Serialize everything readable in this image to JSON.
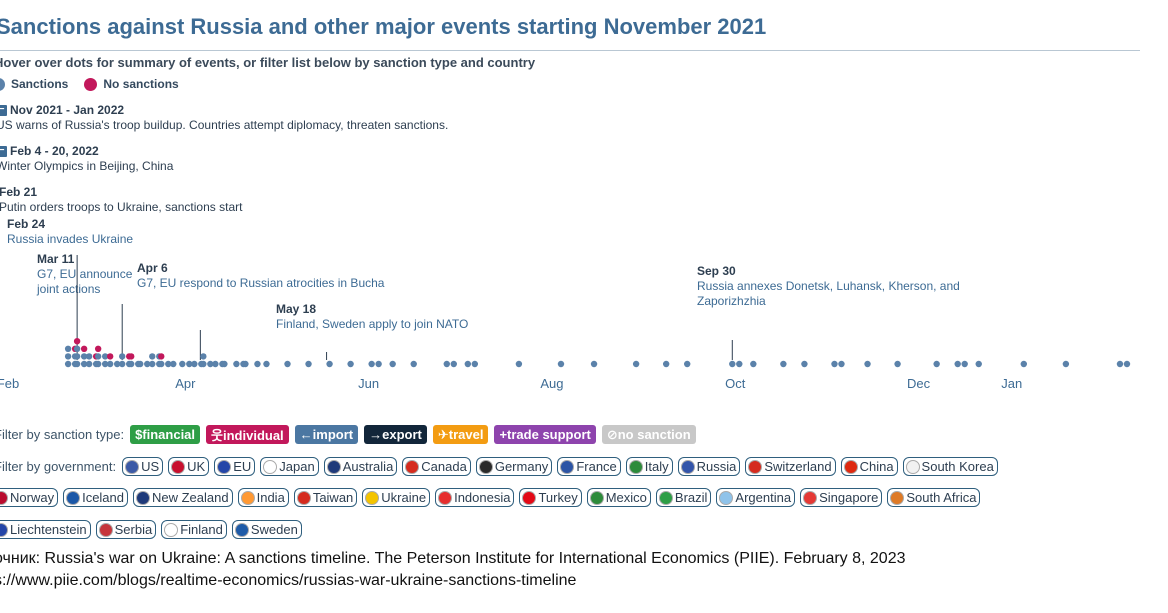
{
  "title": "Sanctions against Russia and other major events starting November 2021",
  "subtitle": "Hover over dots for summary of events, or filter list below by sanction type and country",
  "legend": {
    "sanctions": "Sanctions",
    "no_sanctions": "No sanctions"
  },
  "colors": {
    "sanction": "#5b82aa",
    "no_sanction": "#c2185b",
    "title": "#3d6b94"
  },
  "events": [
    {
      "date": "Nov 2021 - Jan 2022",
      "text": "US warns of Russia's troop buildup. Countries attempt diplomacy, threaten sanctions."
    },
    {
      "date": "Feb 4 - 20, 2022",
      "text": "Winter Olympics in Beijing, China"
    },
    {
      "date": "Feb 21",
      "text": "Putin orders troops to Ukraine, sanctions start"
    },
    {
      "date": "Feb 24",
      "text": "Russia invades Ukraine"
    }
  ],
  "annotations": [
    {
      "date": "Mar 11",
      "text": "G7, EU announce joint actions"
    },
    {
      "date": "Apr 6",
      "text": "G7, EU respond to Russian atrocities in Bucha"
    },
    {
      "date": "May 18",
      "text": "Finland, Sweden apply to join NATO"
    },
    {
      "date": "Sep 30",
      "text": "Russia annexes Donetsk, Luhansk, Kherson, and Zaporizhzhia"
    }
  ],
  "chart_data": {
    "type": "scatter",
    "x_axis_ticks": [
      "Feb",
      "Apr",
      "Jun",
      "Aug",
      "Oct",
      "Dec",
      "Jan"
    ],
    "legend": [
      "Sanctions",
      "No sanctions"
    ],
    "note": "Dot-strip: stacked dots per sanction event",
    "columns": [
      {
        "x": "2022-02-21",
        "s": 5,
        "n": 1
      },
      {
        "x": "2022-02-24",
        "s": 5,
        "n": 2
      },
      {
        "x": "2022-02-28",
        "s": 3,
        "n": 1
      },
      {
        "x": "2022-03-03",
        "s": 4,
        "n": 1
      },
      {
        "x": "2022-03-07",
        "s": 2,
        "n": 1
      },
      {
        "x": "2022-03-11",
        "s": 3,
        "n": 1
      },
      {
        "x": "2022-03-14",
        "s": 2,
        "n": 1
      },
      {
        "x": "2022-03-17",
        "s": 2,
        "n": 0
      },
      {
        "x": "2022-03-21",
        "s": 4,
        "n": 0
      },
      {
        "x": "2022-03-24",
        "s": 2,
        "n": 1
      },
      {
        "x": "2022-03-28",
        "s": 1,
        "n": 0
      },
      {
        "x": "2022-03-31",
        "s": 2,
        "n": 0
      },
      {
        "x": "2022-04-04",
        "s": 2,
        "n": 0
      },
      {
        "x": "2022-04-07",
        "s": 3,
        "n": 0
      },
      {
        "x": "2022-04-11",
        "s": 2,
        "n": 0
      },
      {
        "x": "2022-04-14",
        "s": 1,
        "n": 0
      },
      {
        "x": "2022-04-18",
        "s": 2,
        "n": 0
      },
      {
        "x": "2022-04-21",
        "s": 1,
        "n": 0
      },
      {
        "x": "2022-04-25",
        "s": 1,
        "n": 0
      },
      {
        "x": "2022-04-28",
        "s": 1,
        "n": 0
      },
      {
        "x": "2022-05-05",
        "s": 1,
        "n": 0
      },
      {
        "x": "2022-05-12",
        "s": 1,
        "n": 0
      },
      {
        "x": "2022-05-19",
        "s": 1,
        "n": 0
      },
      {
        "x": "2022-05-26",
        "s": 1,
        "n": 0
      },
      {
        "x": "2022-06-02",
        "s": 2,
        "n": 0
      },
      {
        "x": "2022-06-09",
        "s": 1,
        "n": 0
      },
      {
        "x": "2022-06-16",
        "s": 1,
        "n": 0
      },
      {
        "x": "2022-06-27",
        "s": 2,
        "n": 0
      },
      {
        "x": "2022-07-04",
        "s": 2,
        "n": 0
      },
      {
        "x": "2022-07-21",
        "s": 1,
        "n": 0
      },
      {
        "x": "2022-08-04",
        "s": 1,
        "n": 0
      },
      {
        "x": "2022-08-15",
        "s": 1,
        "n": 0
      },
      {
        "x": "2022-08-29",
        "s": 1,
        "n": 0
      },
      {
        "x": "2022-09-08",
        "s": 1,
        "n": 0
      },
      {
        "x": "2022-09-15",
        "s": 1,
        "n": 0
      },
      {
        "x": "2022-09-30",
        "s": 2,
        "n": 0
      },
      {
        "x": "2022-10-07",
        "s": 1,
        "n": 0
      },
      {
        "x": "2022-10-17",
        "s": 1,
        "n": 0
      },
      {
        "x": "2022-10-24",
        "s": 1,
        "n": 0
      },
      {
        "x": "2022-11-03",
        "s": 2,
        "n": 0
      },
      {
        "x": "2022-11-14",
        "s": 1,
        "n": 0
      },
      {
        "x": "2022-11-24",
        "s": 1,
        "n": 0
      },
      {
        "x": "2022-12-07",
        "s": 1,
        "n": 0
      },
      {
        "x": "2022-12-14",
        "s": 2,
        "n": 0
      },
      {
        "x": "2022-12-21",
        "s": 1,
        "n": 0
      },
      {
        "x": "2023-01-05",
        "s": 1,
        "n": 0
      },
      {
        "x": "2023-01-19",
        "s": 1,
        "n": 0
      },
      {
        "x": "2023-02-06",
        "s": 2,
        "n": 0
      }
    ]
  },
  "filters": {
    "type_label": "Filter by sanction type:",
    "types": [
      {
        "label": "$financial",
        "color": "#2e9e46"
      },
      {
        "label": "웃individual",
        "color": "#c2185b"
      },
      {
        "label": "←import",
        "color": "#4b77a2"
      },
      {
        "label": "→export",
        "color": "#12263a"
      },
      {
        "label": "✈travel",
        "color": "#f39c12"
      },
      {
        "label": "+trade support",
        "color": "#8e44ad"
      },
      {
        "label": "⊘no sanction",
        "color": "#c8c8c8"
      }
    ],
    "gov_label": "Filter by government:",
    "govs_row1": [
      {
        "label": "US",
        "flag": "#3c5aa6"
      },
      {
        "label": "UK",
        "flag": "#c8102e"
      },
      {
        "label": "EU",
        "flag": "#2446a8"
      },
      {
        "label": "Japan",
        "flag": "#ffffff"
      },
      {
        "label": "Australia",
        "flag": "#1f3a7a"
      },
      {
        "label": "Canada",
        "flag": "#d52b1e"
      },
      {
        "label": "Germany",
        "flag": "#2b2b2b"
      },
      {
        "label": "France",
        "flag": "#2d55a5"
      },
      {
        "label": "Italy",
        "flag": "#2e8b3b"
      },
      {
        "label": "Russia",
        "flag": "#3355aa"
      },
      {
        "label": "Switzerland",
        "flag": "#d52b1e"
      },
      {
        "label": "China",
        "flag": "#de2910"
      },
      {
        "label": "South Korea",
        "flag": "#f2f2f2"
      }
    ],
    "govs_row2": [
      {
        "label": "Norway",
        "flag": "#ba0c2f"
      },
      {
        "label": "Iceland",
        "flag": "#1c58a8"
      },
      {
        "label": "New Zealand",
        "flag": "#1f3a7a"
      },
      {
        "label": "India",
        "flag": "#ff9933"
      },
      {
        "label": "Taiwan",
        "flag": "#d52b1e"
      },
      {
        "label": "Ukraine",
        "flag": "#f4c400"
      },
      {
        "label": "Indonesia",
        "flag": "#e62e2e"
      },
      {
        "label": "Turkey",
        "flag": "#e30a17"
      },
      {
        "label": "Mexico",
        "flag": "#2e8b3b"
      },
      {
        "label": "Brazil",
        "flag": "#2e9e46"
      },
      {
        "label": "Argentina",
        "flag": "#8fc3ea"
      },
      {
        "label": "Singapore",
        "flag": "#e53935"
      },
      {
        "label": "South Africa",
        "flag": "#de7a26"
      }
    ],
    "govs_row3": [
      {
        "label": "Liechtenstein",
        "flag": "#2446a8"
      },
      {
        "label": "Serbia",
        "flag": "#c6363c"
      },
      {
        "label": "Finland",
        "flag": "#ffffff"
      },
      {
        "label": "Sweden",
        "flag": "#1e5ba8"
      }
    ]
  },
  "source": {
    "line1": "очник: Russia's war on Ukraine: A sanctions timeline. The Peterson Institute for International Economics (PIIE). February 8, 2023",
    "line2": "s://www.piie.com/blogs/realtime-economics/russias-war-ukraine-sanctions-timeline"
  }
}
